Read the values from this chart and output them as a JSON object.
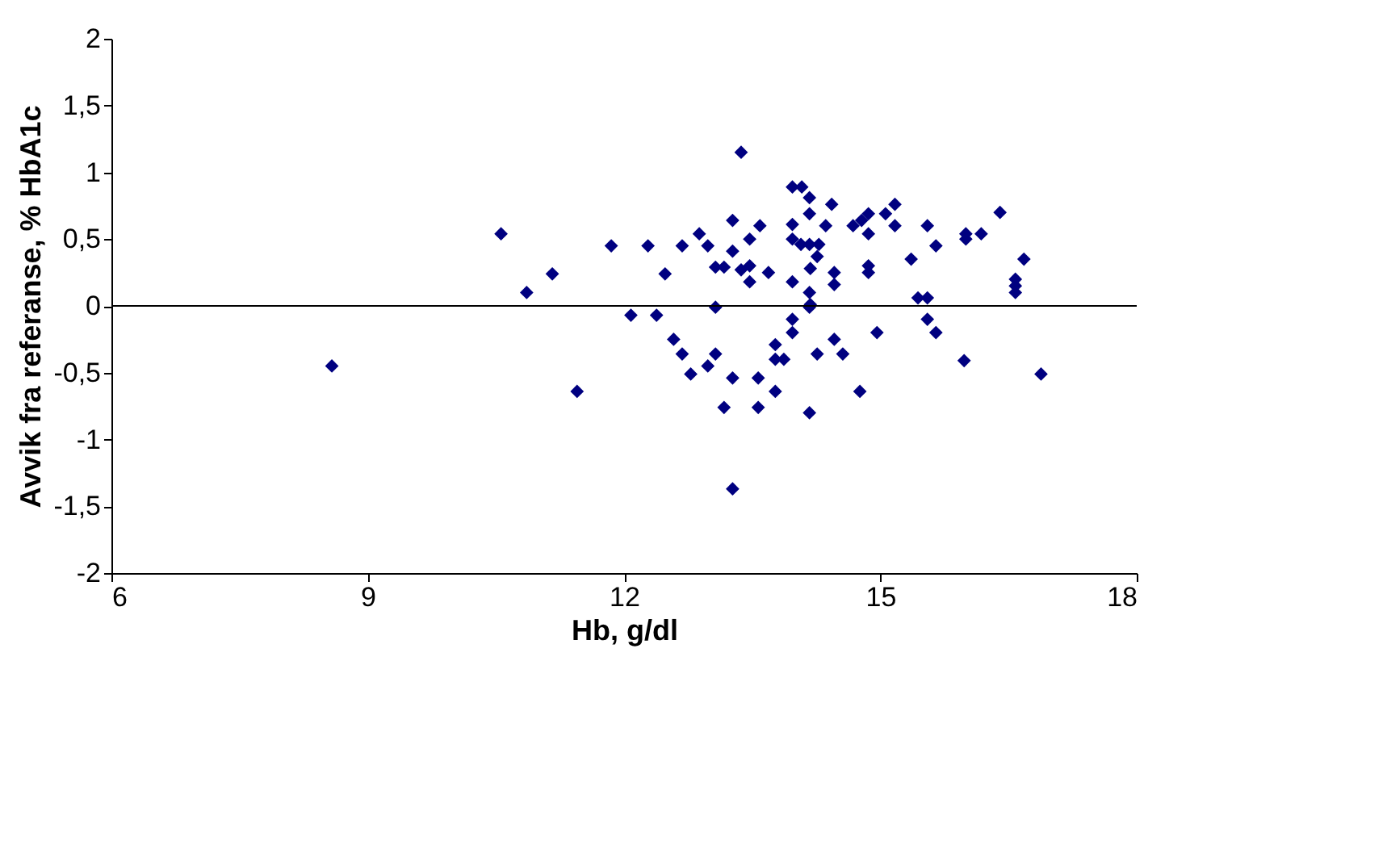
{
  "chart_data": {
    "type": "scatter",
    "xlabel": "Hb, g/dl",
    "ylabel": "Avvik fra referanse, % HbA1c",
    "x": [
      8.58,
      10.56,
      10.86,
      11.16,
      11.45,
      11.85,
      12.08,
      12.28,
      12.38,
      12.48,
      12.58,
      12.68,
      12.68,
      12.78,
      12.88,
      12.98,
      12.98,
      13.07,
      13.07,
      13.07,
      13.17,
      13.17,
      13.27,
      13.27,
      13.27,
      13.27,
      13.37,
      13.37,
      13.47,
      13.47,
      13.47,
      13.57,
      13.57,
      13.59,
      13.69,
      13.77,
      13.77,
      13.77,
      13.87,
      13.97,
      13.97,
      13.97,
      13.97,
      13.97,
      13.97,
      14.08,
      14.07,
      14.17,
      14.17,
      14.17,
      14.17,
      14.17,
      14.17,
      14.18,
      14.18,
      14.26,
      14.26,
      14.28,
      14.36,
      14.43,
      14.46,
      14.46,
      14.46,
      14.56,
      14.68,
      14.76,
      14.78,
      14.86,
      14.86,
      14.86,
      14.86,
      14.96,
      15.06,
      15.17,
      15.17,
      15.36,
      15.44,
      15.55,
      15.55,
      15.55,
      15.65,
      15.65,
      15.98,
      16.0,
      16.0,
      16.18,
      16.4,
      16.58,
      16.58,
      16.58,
      16.68,
      16.88
    ],
    "series": [
      {
        "color": "#000080",
        "values": [
          -0.45,
          0.54,
          0.1,
          0.24,
          -0.64,
          0.45,
          -0.07,
          0.45,
          -0.07,
          0.24,
          -0.25,
          0.45,
          -0.36,
          -0.51,
          0.54,
          0.45,
          -0.45,
          0.29,
          -0.36,
          -0.01,
          0.29,
          -0.76,
          0.64,
          0.41,
          -0.54,
          -1.37,
          1.15,
          0.27,
          0.3,
          0.18,
          0.5,
          -0.54,
          -0.76,
          0.6,
          0.25,
          -0.64,
          -0.29,
          -0.4,
          -0.4,
          0.89,
          0.61,
          0.5,
          0.18,
          -0.2,
          -0.1,
          0.89,
          0.46,
          0.81,
          0.69,
          0.46,
          0.1,
          -0.01,
          -0.8,
          0.28,
          0.01,
          0.37,
          -0.36,
          0.46,
          0.6,
          0.76,
          -0.25,
          0.25,
          0.16,
          -0.36,
          0.6,
          -0.64,
          0.64,
          0.69,
          0.54,
          0.3,
          0.25,
          -0.2,
          0.69,
          0.76,
          0.6,
          0.35,
          0.06,
          0.06,
          0.6,
          -0.1,
          0.45,
          -0.2,
          -0.41,
          0.54,
          0.5,
          0.54,
          0.7,
          0.2,
          0.15,
          0.1,
          0.35,
          -0.51
        ]
      }
    ],
    "xlim": [
      6,
      18
    ],
    "xticks": [
      6,
      9,
      12,
      15,
      18
    ],
    "ylim": [
      -2,
      2
    ],
    "yticks": [
      {
        "value": -2,
        "label": "-2"
      },
      {
        "value": -1.5,
        "label": "-1,5"
      },
      {
        "value": -1,
        "label": "-1"
      },
      {
        "value": -0.5,
        "label": "-0,5"
      },
      {
        "value": 0,
        "label": "0"
      },
      {
        "value": 0.5,
        "label": "0,5"
      },
      {
        "value": 1,
        "label": "1"
      },
      {
        "value": 1.5,
        "label": "1,5"
      },
      {
        "value": 2,
        "label": "2"
      }
    ],
    "ref_lines": [
      {
        "axis": "y",
        "value": 0,
        "color": "#000000"
      }
    ],
    "marker": "diamond",
    "grid": false
  }
}
